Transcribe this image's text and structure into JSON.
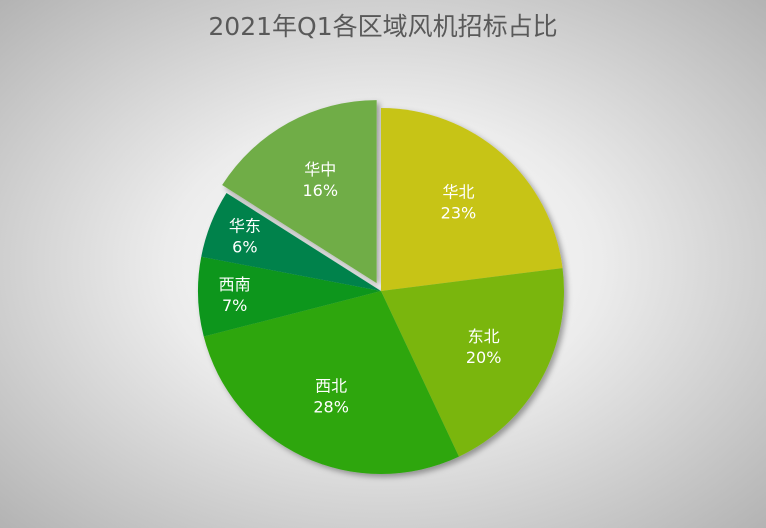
{
  "chart_data": {
    "type": "pie",
    "title": "2021年Q1各区域风机招标占比",
    "categories": [
      "华北",
      "东北",
      "西北",
      "西南",
      "华东",
      "华中"
    ],
    "values": [
      23,
      20,
      28,
      7,
      6,
      16
    ],
    "value_labels": [
      "23%",
      "20%",
      "28%",
      "7%",
      "6%",
      "16%"
    ],
    "colors": [
      "#c7c417",
      "#7ab611",
      "#2da60a",
      "#08961a",
      "#00824b",
      "#70ad47"
    ]
  }
}
